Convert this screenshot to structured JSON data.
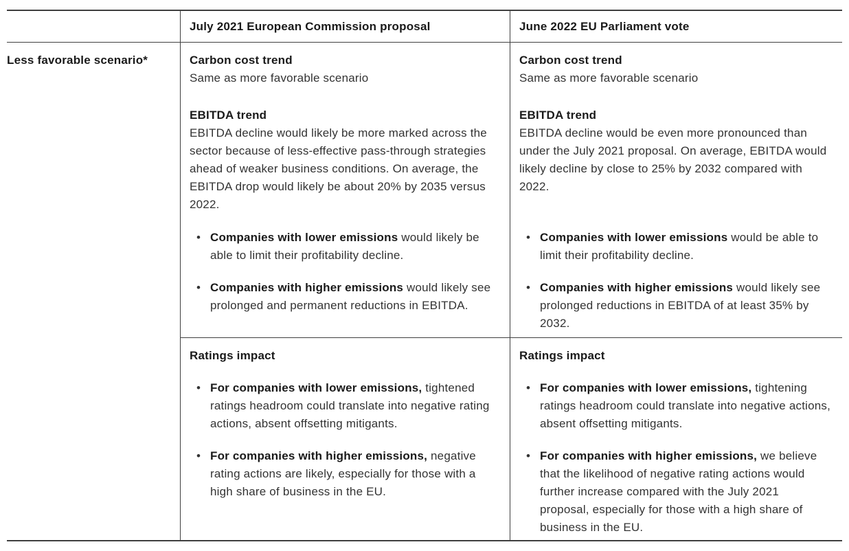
{
  "bullet_char": "•",
  "colors": {
    "background": "#ffffff",
    "border": "#3f3f3f",
    "heading_text": "#1a1a1a",
    "body_text": "#333333"
  },
  "table": {
    "header": {
      "col1": "July 2021 European Commission proposal",
      "col2": "June 2022 EU Parliament vote"
    },
    "row_label": "Less favorable scenario*",
    "col1": {
      "carbon": {
        "heading": "Carbon cost trend",
        "text": "Same as more favorable scenario"
      },
      "ebitda": {
        "heading": "EBITDA trend",
        "text": "EBITDA decline would likely be more marked across the sector because of less-effective pass-through strategies ahead of weaker business conditions. On average, the EBITDA drop would likely be about 20% by 2035 versus 2022."
      },
      "emission_bullets": [
        {
          "bold": "Companies with lower emissions",
          "rest": " would likely be able to limit their profitability decline."
        },
        {
          "bold": "Companies with higher emissions",
          "rest": " would likely see prolonged and permanent reductions in EBITDA."
        }
      ],
      "ratings": {
        "heading": "Ratings impact",
        "bullets": [
          {
            "bold": "For companies with lower emissions,",
            "rest": " tightened ratings headroom could translate into negative rating actions, absent offsetting mitigants."
          },
          {
            "bold": "For companies with higher emissions,",
            "rest": " negative rating actions are likely, especially for those with a high share of business in the EU."
          }
        ]
      }
    },
    "col2": {
      "carbon": {
        "heading": "Carbon cost trend",
        "text": "Same as more favorable scenario"
      },
      "ebitda": {
        "heading": "EBITDA trend",
        "text": "EBITDA decline would be even more pronounced than under the July 2021 proposal. On average, EBITDA would likely decline by close to 25% by 2032 compared with 2022."
      },
      "emission_bullets": [
        {
          "bold": "Companies with lower emissions",
          "rest": " would be able to limit their profitability decline."
        },
        {
          "bold": "Companies with higher emissions",
          "rest": " would likely see prolonged reductions in EBITDA of at least 35% by 2032."
        }
      ],
      "ratings": {
        "heading": "Ratings impact",
        "bullets": [
          {
            "bold": "For companies with lower emissions,",
            "rest": " tightening ratings headroom could translate into negative actions, absent offsetting mitigants."
          },
          {
            "bold": "For companies with higher emissions,",
            "rest": " we believe that the likelihood of negative rating actions would further increase compared with the July 2021 proposal, especially for those with a high share of business in the EU."
          }
        ]
      }
    }
  }
}
